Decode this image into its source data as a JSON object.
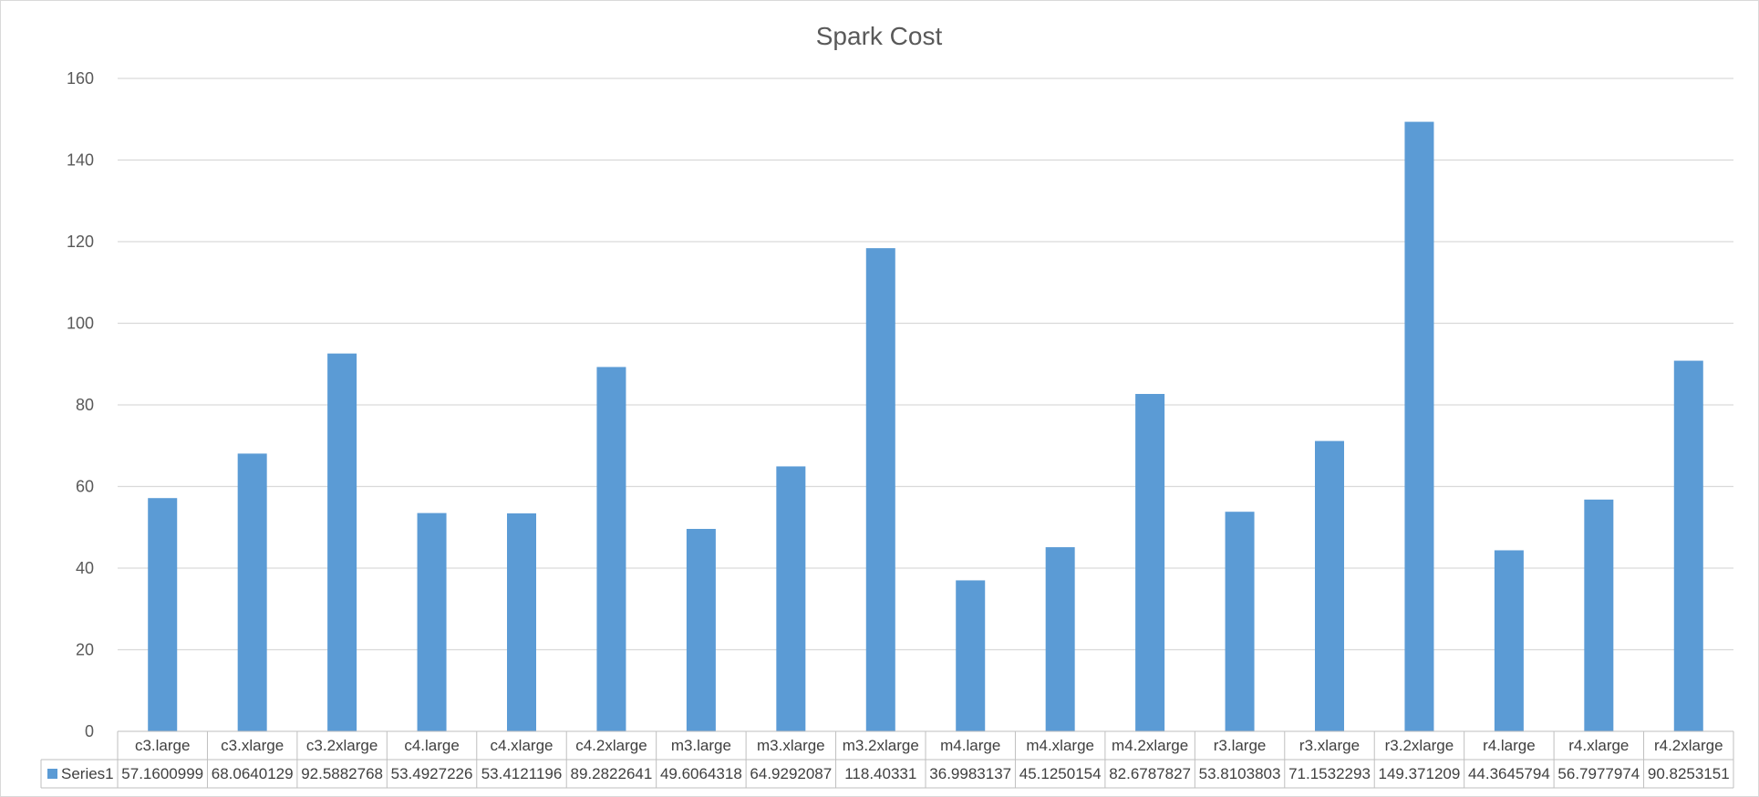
{
  "chart_data": {
    "type": "bar",
    "title": "Spark Cost",
    "xlabel": "",
    "ylabel": "",
    "ylim": [
      0,
      160
    ],
    "y_ticks": [
      "0",
      "20",
      "40",
      "60",
      "80",
      "100",
      "120",
      "140",
      "160"
    ],
    "grid": true,
    "legend": "data table, left of value row",
    "categories": [
      "c3.large",
      "c3.xlarge",
      "c3.2xlarge",
      "c4.large",
      "c4.xlarge",
      "c4.2xlarge",
      "m3.large",
      "m3.xlarge",
      "m3.2xlarge",
      "m4.large",
      "m4.xlarge",
      "m4.2xlarge",
      "r3.large",
      "r3.xlarge",
      "r3.2xlarge",
      "r4.large",
      "r4.xlarge",
      "r4.2xlarge"
    ],
    "series": [
      {
        "name": "Series1",
        "color": "#5b9bd5",
        "values": [
          57.1600999,
          68.0640129,
          92.5882768,
          53.4927226,
          53.4121196,
          89.2822641,
          49.6064318,
          64.9292087,
          118.40331,
          36.9983137,
          45.1250154,
          82.6787827,
          53.8103803,
          71.1532293,
          149.371209,
          44.3645794,
          56.7977974,
          90.8253151
        ],
        "value_labels": [
          "57.1600999",
          "68.0640129",
          "92.5882768",
          "53.4927226",
          "53.4121196",
          "89.2822641",
          "49.6064318",
          "64.9292087",
          "118.40331",
          "36.9983137",
          "45.1250154",
          "82.6787827",
          "53.8103803",
          "71.1532293",
          "149.371209",
          "44.3645794",
          "56.7977974",
          "90.8253151"
        ]
      }
    ]
  }
}
